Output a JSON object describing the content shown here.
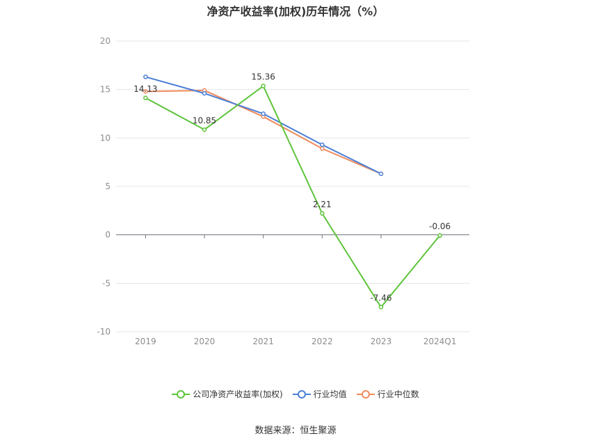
{
  "chart_data": {
    "type": "line",
    "title": "净资产收益率(加权)历年情况（%）",
    "categories": [
      "2019",
      "2020",
      "2021",
      "2022",
      "2023",
      "2024Q1"
    ],
    "ylim": [
      -10,
      20
    ],
    "yticks": [
      20,
      15,
      10,
      5,
      0,
      -5,
      -10
    ],
    "grid": true,
    "legend_position": "bottom",
    "series": [
      {
        "name": "公司净资产收益率(加权)",
        "color": "#5dc43a",
        "values": [
          14.13,
          10.85,
          15.36,
          2.21,
          -7.46,
          -0.06
        ],
        "labels": [
          "14.13",
          "10.85",
          "15.36",
          "2.21",
          "-7.46",
          "-0.06"
        ]
      },
      {
        "name": "行业均值",
        "color": "#4a7fd6",
        "values": [
          16.3,
          14.6,
          12.5,
          9.3,
          6.3,
          null
        ]
      },
      {
        "name": "行业中位数",
        "color": "#f08a5d",
        "values": [
          14.8,
          14.9,
          12.2,
          8.9,
          6.3,
          null
        ]
      }
    ]
  },
  "source": "数据来源：恒生聚源"
}
